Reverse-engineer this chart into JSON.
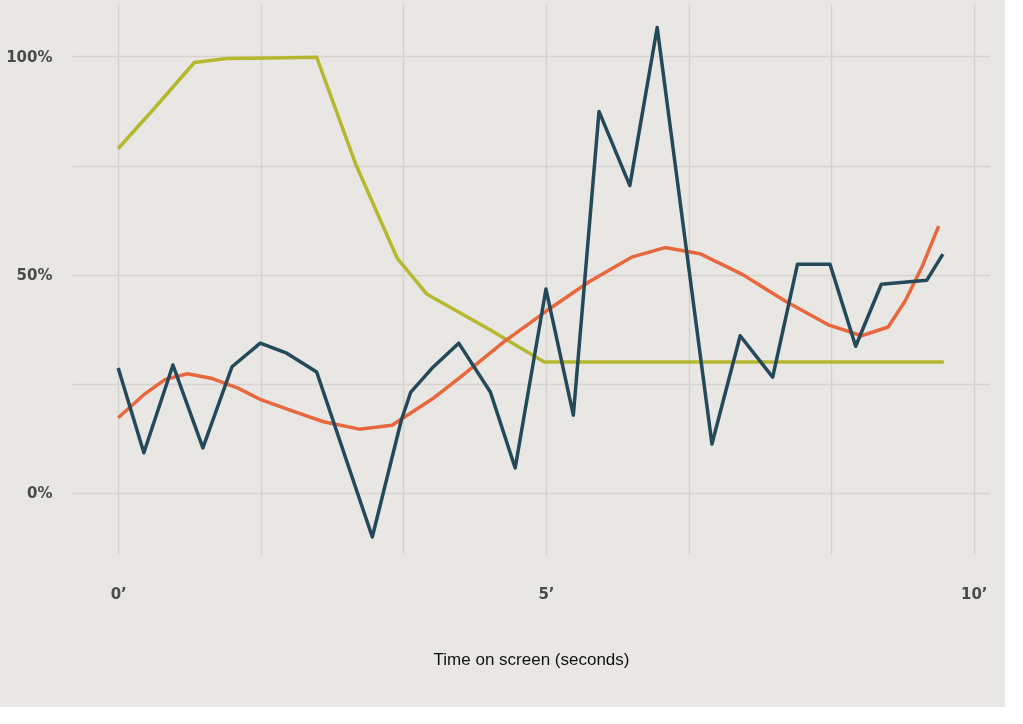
{
  "chart_data": {
    "type": "line",
    "xlabel": "Time on screen (seconds)",
    "xlim": [
      -0.54,
      10.19
    ],
    "ylim": [
      -14,
      112
    ],
    "xticks": [
      {
        "value": 0,
        "label": "0’"
      },
      {
        "value": 1.667,
        "label": null
      },
      {
        "value": 3.333,
        "label": null
      },
      {
        "value": 5,
        "label": "5’"
      },
      {
        "value": 6.667,
        "label": null
      },
      {
        "value": 8.333,
        "label": null
      },
      {
        "value": 10,
        "label": "10’"
      }
    ],
    "yticks": [
      {
        "value": 0,
        "label": "0%"
      },
      {
        "value": 25,
        "label": null
      },
      {
        "value": 50,
        "label": "50%"
      },
      {
        "value": 75,
        "label": null
      },
      {
        "value": 100,
        "label": "100%"
      }
    ],
    "grid": true,
    "marker": "none",
    "line_style": "solid",
    "series": [
      {
        "color": "#b5b82e",
        "x": [
          0,
          0.4,
          0.89,
          1.27,
          2.32,
          2.78,
          3.26,
          3.61,
          4.35,
          4.98,
          9.65
        ],
        "values": [
          78.9,
          87.6,
          98.6,
          99.5,
          99.8,
          75.1,
          53.8,
          45.5,
          37.3,
          30.0,
          30.0
        ]
      },
      {
        "color": "#e8673c",
        "x": [
          0,
          0.3,
          0.55,
          0.81,
          1.1,
          1.4,
          1.65,
          2.0,
          2.4,
          2.82,
          3.2,
          3.67,
          4.0,
          4.5,
          5.0,
          5.5,
          6.0,
          6.39,
          6.8,
          7.3,
          7.8,
          8.3,
          8.69,
          9.0,
          9.2,
          9.4,
          9.59
        ],
        "values": [
          17.2,
          22.5,
          26,
          27.3,
          26.2,
          24,
          21.5,
          19,
          16.3,
          14.6,
          15.5,
          21.5,
          26.5,
          34.5,
          41.6,
          48.3,
          54,
          56.2,
          54.8,
          50,
          43.9,
          38.5,
          36,
          38,
          44,
          52,
          61.1
        ]
      },
      {
        "color": "#24495a",
        "x": [
          0,
          0.3,
          0.64,
          0.99,
          1.33,
          1.66,
          1.97,
          2.32,
          2.97,
          3.31,
          3.42,
          3.67,
          3.98,
          4.35,
          4.64,
          5.0,
          5.32,
          5.62,
          5.98,
          6.3,
          6.94,
          7.27,
          7.65,
          7.94,
          8.32,
          8.62,
          8.92,
          9.45,
          9.64
        ],
        "values": [
          28.6,
          9.2,
          29.3,
          10.3,
          28.9,
          34.3,
          32.0,
          27.7,
          -10.1,
          16.7,
          23.1,
          28.6,
          34.3,
          23.1,
          5.7,
          46.7,
          17.8,
          87.4,
          70.4,
          106.6,
          11.2,
          36.0,
          26.5,
          52.4,
          52.4,
          33.6,
          47.8,
          48.7,
          54.7
        ]
      }
    ]
  }
}
